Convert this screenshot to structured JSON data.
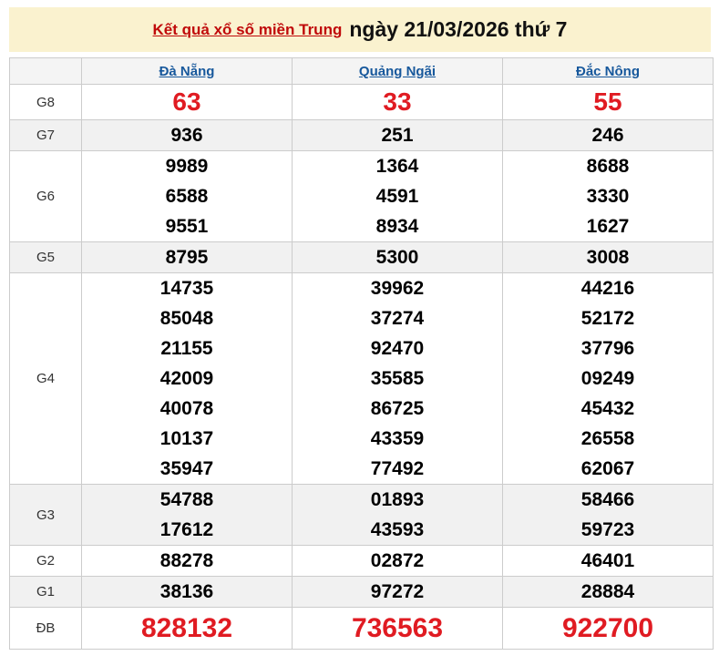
{
  "banner": {
    "title_link": "Kết quả xổ số miền Trung",
    "title_rest": "ngày 21/03/2026 thứ 7"
  },
  "table": {
    "columns": [
      "Đà Nẵng",
      "Quảng Ngãi",
      "Đắc Nông"
    ],
    "rows": [
      {
        "label": "G8",
        "size": "big",
        "striped": false,
        "values": [
          [
            "63"
          ],
          [
            "33"
          ],
          [
            "55"
          ]
        ]
      },
      {
        "label": "G7",
        "size": "normal",
        "striped": true,
        "values": [
          [
            "936"
          ],
          [
            "251"
          ],
          [
            "246"
          ]
        ]
      },
      {
        "label": "G6",
        "size": "normal",
        "striped": false,
        "values": [
          [
            "9989",
            "6588",
            "9551"
          ],
          [
            "1364",
            "4591",
            "8934"
          ],
          [
            "8688",
            "3330",
            "1627"
          ]
        ]
      },
      {
        "label": "G5",
        "size": "normal",
        "striped": true,
        "values": [
          [
            "8795"
          ],
          [
            "5300"
          ],
          [
            "3008"
          ]
        ]
      },
      {
        "label": "G4",
        "size": "normal",
        "striped": false,
        "values": [
          [
            "14735",
            "85048",
            "21155",
            "42009",
            "40078",
            "10137",
            "35947"
          ],
          [
            "39962",
            "37274",
            "92470",
            "35585",
            "86725",
            "43359",
            "77492"
          ],
          [
            "44216",
            "52172",
            "37796",
            "09249",
            "45432",
            "26558",
            "62067"
          ]
        ]
      },
      {
        "label": "G3",
        "size": "normal",
        "striped": true,
        "values": [
          [
            "54788",
            "17612"
          ],
          [
            "01893",
            "43593"
          ],
          [
            "58466",
            "59723"
          ]
        ]
      },
      {
        "label": "G2",
        "size": "normal",
        "striped": false,
        "values": [
          [
            "88278"
          ],
          [
            "02872"
          ],
          [
            "46401"
          ]
        ]
      },
      {
        "label": "G1",
        "size": "normal",
        "striped": true,
        "values": [
          [
            "38136"
          ],
          [
            "97272"
          ],
          [
            "28884"
          ]
        ]
      },
      {
        "label": "ĐB",
        "size": "jackpot",
        "striped": false,
        "values": [
          [
            "828132"
          ],
          [
            "736563"
          ],
          [
            "922700"
          ]
        ]
      }
    ]
  },
  "colors": {
    "banner_bg": "#faf2cf",
    "title_link_red": "#c00a0a",
    "header_link_blue": "#17589c",
    "highlight_number_red": "#e01b22",
    "stripe_gray": "#f1f1f1",
    "header_bg_gray": "#f4f4f4",
    "border_gray": "#cccccc"
  }
}
